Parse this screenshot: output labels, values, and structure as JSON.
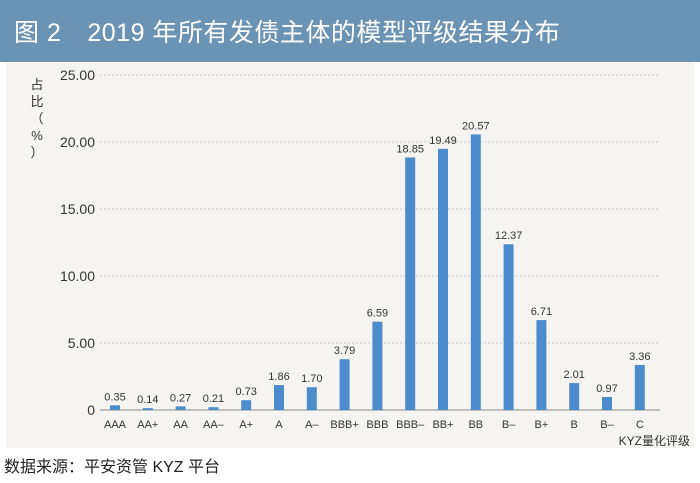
{
  "header": {
    "figure_number": "图 2",
    "title": "2019 年所有发债主体的模型评级结果分布"
  },
  "source": "数据来源：平安资管 KYZ 平台",
  "colors": {
    "header_bg": "#6b93b3",
    "bar": "#4d8ccc",
    "panel_bg": "#f5f4f1"
  },
  "chart_data": {
    "type": "bar",
    "title": "2019 年所有发债主体的模型评级结果分布",
    "ylabel_chars": [
      "占",
      "比",
      "（",
      "%",
      "）"
    ],
    "xlabel": "KYZ量化评级",
    "ylim": [
      0,
      25
    ],
    "yticks": [
      "0",
      "5.00",
      "10.00",
      "15.00",
      "20.00",
      "25.00"
    ],
    "ytick_values": [
      0,
      5,
      10,
      15,
      20,
      25
    ],
    "grid": true,
    "categories": [
      "AAA",
      "AA+",
      "AA",
      "AA–",
      "A+",
      "A",
      "A–",
      "BBB+",
      "BBB",
      "BBB–",
      "BB+",
      "BB",
      "B–",
      "B+",
      "B",
      "B–",
      "C"
    ],
    "values": [
      0.35,
      0.14,
      0.27,
      0.21,
      0.73,
      1.86,
      1.7,
      3.79,
      6.59,
      18.85,
      19.49,
      20.57,
      12.37,
      6.71,
      2.01,
      0.97,
      3.36
    ],
    "value_labels": [
      "0.35",
      "0.14",
      "0.27",
      "0.21",
      "0.73",
      "1.86",
      "1.70",
      "3.79",
      "6.59",
      "18.85",
      "19.49",
      "20.57",
      "12.37",
      "6.71",
      "2.01",
      "0.97",
      "3.36"
    ]
  }
}
